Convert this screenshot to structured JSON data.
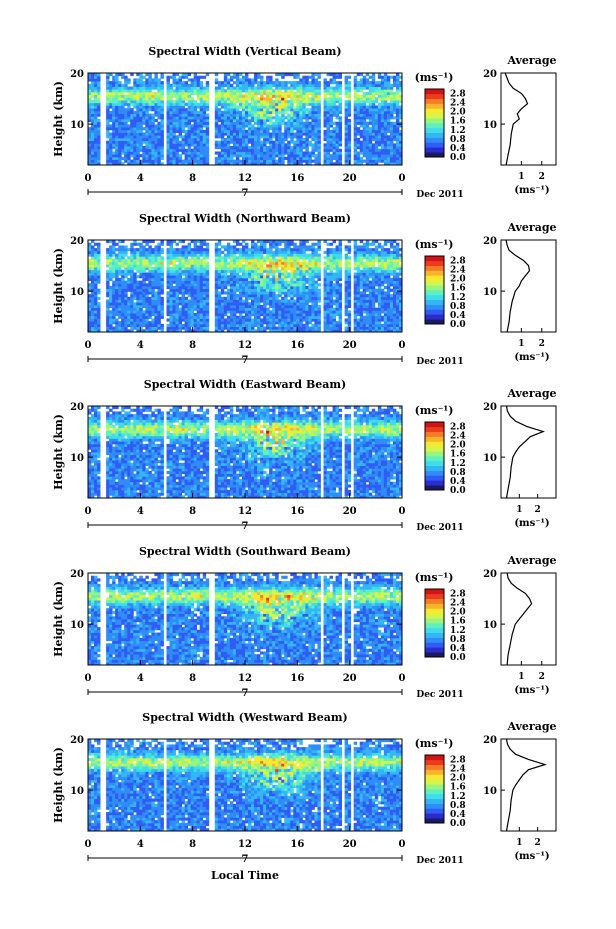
{
  "figure": {
    "xlabel_global": "Local Time"
  },
  "colorbar": {
    "unit_label": "(ms⁻¹)",
    "ticks": [
      "2.8",
      "2.4",
      "2.0",
      "1.6",
      "1.2",
      "0.8",
      "0.4",
      "0.0"
    ],
    "range": [
      0.0,
      3.0
    ],
    "colors": [
      "#1a1a5e",
      "#2b2bd0",
      "#2f5cf5",
      "#2f8cf8",
      "#34b6f6",
      "#3fdceb",
      "#5ef0c0",
      "#9af57e",
      "#d6f54a",
      "#f8e830",
      "#f8b52a",
      "#f47c26",
      "#ec3c1e",
      "#d41414"
    ]
  },
  "chart_data": [
    {
      "type": "heatmap",
      "title": "Spectral Width (Vertical Beam)",
      "ylabel": "Height (km)",
      "yticks": [
        "20",
        "10"
      ],
      "ylim": [
        2,
        20
      ],
      "xticks": [
        "0",
        "4",
        "8",
        "12",
        "16",
        "20",
        "0"
      ],
      "xlim": [
        0,
        24
      ],
      "date_label": "7",
      "month_label": "Dec 2011",
      "gaps_hours": [
        [
          1.0,
          1.3
        ],
        [
          5.8,
          6.1
        ],
        [
          9.2,
          9.6
        ],
        [
          17.8,
          18.0
        ],
        [
          19.3,
          19.5
        ],
        [
          20.1,
          20.2
        ]
      ],
      "avg_profile": {
        "title": "Average",
        "xlabel": "(ms⁻¹)",
        "xticks": [
          "1",
          "2"
        ],
        "xlim": [
          0,
          2.7
        ],
        "height_km": [
          2,
          4,
          6,
          8,
          10,
          11,
          12,
          13,
          14,
          15,
          16,
          17,
          18,
          19,
          20
        ],
        "width_ms": [
          0.25,
          0.35,
          0.45,
          0.5,
          0.6,
          0.9,
          0.8,
          1.0,
          1.3,
          1.2,
          1.0,
          0.6,
          0.4,
          0.3,
          0.2
        ]
      }
    },
    {
      "type": "heatmap",
      "title": "Spectral Width (Northward Beam)",
      "ylabel": "Height (km)",
      "yticks": [
        "20",
        "10"
      ],
      "ylim": [
        2,
        20
      ],
      "xticks": [
        "0",
        "4",
        "8",
        "12",
        "16",
        "20",
        "0"
      ],
      "xlim": [
        0,
        24
      ],
      "date_label": "7",
      "month_label": "Dec 2011",
      "gaps_hours": [
        [
          1.0,
          1.3
        ],
        [
          5.8,
          6.1
        ],
        [
          9.2,
          9.6
        ],
        [
          17.8,
          18.0
        ],
        [
          19.3,
          19.5
        ],
        [
          20.1,
          20.2
        ]
      ],
      "avg_profile": {
        "title": "Average",
        "xlabel": "(ms⁻¹)",
        "xticks": [
          "1",
          "2"
        ],
        "xlim": [
          0,
          2.7
        ],
        "height_km": [
          2,
          4,
          6,
          8,
          10,
          11,
          12,
          13,
          14,
          15,
          16,
          17,
          18,
          19,
          20
        ],
        "width_ms": [
          0.3,
          0.4,
          0.45,
          0.55,
          0.7,
          0.9,
          1.0,
          1.2,
          1.4,
          1.35,
          1.1,
          0.7,
          0.4,
          0.3,
          0.25
        ]
      }
    },
    {
      "type": "heatmap",
      "title": "Spectral Width (Eastward Beam)",
      "ylabel": "Height (km)",
      "yticks": [
        "20",
        "10"
      ],
      "ylim": [
        2,
        20
      ],
      "xticks": [
        "0",
        "4",
        "8",
        "12",
        "16",
        "20",
        "0"
      ],
      "xlim": [
        0,
        24
      ],
      "date_label": "7",
      "month_label": "Dec 2011",
      "gaps_hours": [
        [
          1.0,
          1.3
        ],
        [
          5.8,
          6.1
        ],
        [
          9.2,
          9.6
        ],
        [
          17.8,
          18.0
        ],
        [
          19.3,
          19.5
        ],
        [
          20.1,
          20.2
        ]
      ],
      "avg_profile": {
        "title": "Average",
        "xlabel": "(ms⁻¹)",
        "xticks": [
          "1",
          "2"
        ],
        "xlim": [
          0,
          3.0
        ],
        "height_km": [
          2,
          4,
          6,
          8,
          10,
          11,
          12,
          13,
          14,
          15,
          16,
          17,
          18,
          19,
          20
        ],
        "width_ms": [
          0.3,
          0.4,
          0.5,
          0.55,
          0.65,
          0.8,
          1.0,
          1.3,
          1.6,
          2.3,
          1.4,
          0.8,
          0.5,
          0.35,
          0.3
        ]
      }
    },
    {
      "type": "heatmap",
      "title": "Spectral Width (Southward Beam)",
      "ylabel": "Height (km)",
      "yticks": [
        "20",
        "10"
      ],
      "ylim": [
        2,
        20
      ],
      "xticks": [
        "0",
        "4",
        "8",
        "12",
        "16",
        "20",
        "0"
      ],
      "xlim": [
        0,
        24
      ],
      "date_label": "7",
      "month_label": "Dec 2011",
      "gaps_hours": [
        [
          1.0,
          1.3
        ],
        [
          5.8,
          6.1
        ],
        [
          9.2,
          9.6
        ],
        [
          17.8,
          18.0
        ],
        [
          19.3,
          19.5
        ],
        [
          20.1,
          20.2
        ]
      ],
      "avg_profile": {
        "title": "Average",
        "xlabel": "(ms⁻¹)",
        "xticks": [
          "1",
          "2"
        ],
        "xlim": [
          0,
          2.7
        ],
        "height_km": [
          2,
          4,
          6,
          8,
          10,
          11,
          12,
          13,
          14,
          15,
          16,
          17,
          18,
          19,
          20
        ],
        "width_ms": [
          0.3,
          0.35,
          0.45,
          0.55,
          0.7,
          0.9,
          1.1,
          1.3,
          1.5,
          1.4,
          1.2,
          0.8,
          0.5,
          0.35,
          0.3
        ]
      }
    },
    {
      "type": "heatmap",
      "title": "Spectral Width (Westward Beam)",
      "ylabel": "Height (km)",
      "yticks": [
        "20",
        "10"
      ],
      "ylim": [
        2,
        20
      ],
      "xticks": [
        "0",
        "4",
        "8",
        "12",
        "16",
        "20",
        "0"
      ],
      "xlim": [
        0,
        24
      ],
      "date_label": "7",
      "month_label": "Dec 2011",
      "gaps_hours": [
        [
          1.0,
          1.3
        ],
        [
          5.8,
          6.1
        ],
        [
          9.2,
          9.6
        ],
        [
          17.8,
          18.0
        ],
        [
          19.3,
          19.5
        ],
        [
          20.1,
          20.2
        ]
      ],
      "avg_profile": {
        "title": "Average",
        "xlabel": "(ms⁻¹)",
        "xticks": [
          "1",
          "2"
        ],
        "xlim": [
          0,
          3.0
        ],
        "height_km": [
          2,
          4,
          6,
          8,
          10,
          11,
          12,
          13,
          14,
          15,
          16,
          17,
          18,
          19,
          20
        ],
        "width_ms": [
          0.3,
          0.4,
          0.5,
          0.55,
          0.65,
          0.8,
          1.0,
          1.2,
          1.5,
          2.4,
          1.5,
          0.8,
          0.5,
          0.35,
          0.3
        ]
      }
    }
  ]
}
